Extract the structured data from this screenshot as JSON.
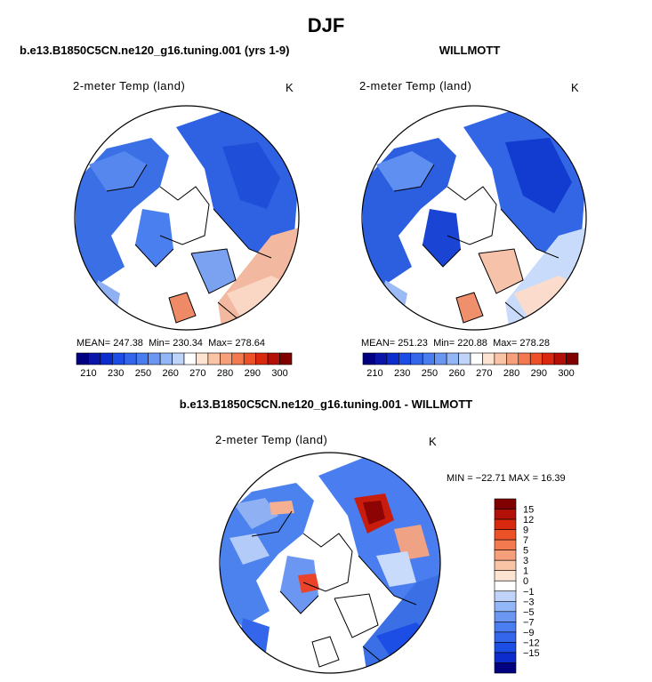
{
  "page": {
    "title": "DJF",
    "diff_title": "b.e13.B1850C5CN.ne120_g16.tuning.001 - WILLMOTT"
  },
  "panels": [
    {
      "case": "b.e13.B1850C5CN.ne120_g16.tuning.001 (yrs 1-9)",
      "field": "2-meter Temp (land)",
      "units": "K",
      "stats": {
        "mean_label": "MEAN=",
        "mean": "247.38",
        "min_label": "Min=",
        "min": "230.34",
        "max_label": "Max=",
        "max": "278.64"
      }
    },
    {
      "case": "WILLMOTT",
      "field": "2-meter Temp (land)",
      "units": "K",
      "stats": {
        "mean_label": "MEAN=",
        "mean": "251.23",
        "min_label": "Min=",
        "min": "220.88",
        "max_label": "Max=",
        "max": "278.28"
      }
    }
  ],
  "diff_panel": {
    "field": "2-meter Temp (land)",
    "units": "K",
    "stats": "MIN = −22.71 MAX =  16.39"
  },
  "chart_data": [
    {
      "type": "heatmap",
      "title": "2-meter Temp (land)",
      "subtitle": "b.e13.B1850C5CN.ne120_g16.tuning.001 (yrs 1-9)",
      "units": "K",
      "projection": "north polar stereographic",
      "mean": 247.38,
      "min": 230.34,
      "max": 278.64,
      "colorbar": {
        "orientation": "horizontal",
        "tick_labels": [
          "210",
          "230",
          "250",
          "260",
          "270",
          "280",
          "290",
          "300"
        ],
        "colors": [
          "#000080",
          "#0a14a8",
          "#0c2ccd",
          "#1c4ee6",
          "#3466eb",
          "#4a7ef0",
          "#6b97f2",
          "#93b6f6",
          "#c0d4fa",
          "#ffffff",
          "#fde3d2",
          "#f9c3a6",
          "#f5a07a",
          "#f27a4e",
          "#ec5128",
          "#d8280e",
          "#b21008",
          "#800000"
        ]
      }
    },
    {
      "type": "heatmap",
      "title": "2-meter Temp (land)",
      "subtitle": "WILLMOTT",
      "units": "K",
      "projection": "north polar stereographic",
      "mean": 251.23,
      "min": 220.88,
      "max": 278.28,
      "colorbar": {
        "orientation": "horizontal",
        "tick_labels": [
          "210",
          "230",
          "250",
          "260",
          "270",
          "280",
          "290",
          "300"
        ],
        "colors": [
          "#000080",
          "#0a14a8",
          "#0c2ccd",
          "#1c4ee6",
          "#3466eb",
          "#4a7ef0",
          "#6b97f2",
          "#93b6f6",
          "#c0d4fa",
          "#ffffff",
          "#fde3d2",
          "#f9c3a6",
          "#f5a07a",
          "#f27a4e",
          "#ec5128",
          "#d8280e",
          "#b21008",
          "#800000"
        ]
      }
    },
    {
      "type": "heatmap",
      "title": "2-meter Temp (land)",
      "subtitle": "b.e13.B1850C5CN.ne120_g16.tuning.001 - WILLMOTT",
      "units": "K",
      "projection": "north polar stereographic",
      "min": -22.71,
      "max": 16.39,
      "colorbar": {
        "orientation": "vertical",
        "tick_labels": [
          "15",
          "12",
          "9",
          "7",
          "5",
          "3",
          "1",
          "0",
          "−1",
          "−3",
          "−5",
          "−7",
          "−9",
          "−12",
          "−15"
        ],
        "colors": [
          "#800000",
          "#b21008",
          "#d8280e",
          "#ec5128",
          "#f27a4e",
          "#f5a07a",
          "#f9c3a6",
          "#fde3d2",
          "#ffffff",
          "#c0d4fa",
          "#93b6f6",
          "#6b97f2",
          "#4a7ef0",
          "#3466eb",
          "#1c4ee6",
          "#0c2ccd",
          "#000080"
        ]
      }
    }
  ]
}
